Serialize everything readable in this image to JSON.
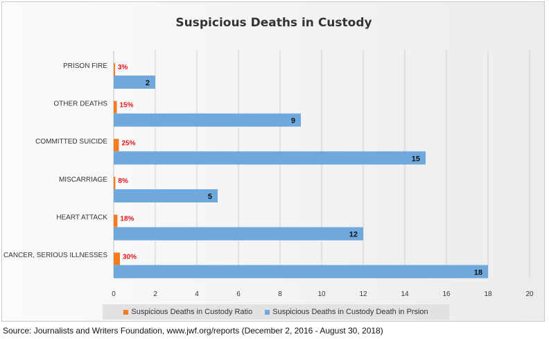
{
  "source_note": "Source: Journalists and Writers Foundation, www.jwf.org/reports (December 2, 2016 - August 30, 2018)",
  "colors": {
    "ratio": "#f47b20",
    "count": "#6fa8dc",
    "ratio_label": "#e8141a",
    "grid": "#d0d0d0"
  },
  "chart_data": {
    "type": "bar",
    "orientation": "horizontal",
    "title": "Suspicious Deaths in Custody",
    "categories": [
      "PRISON FIRE",
      "OTHER DEATHS",
      "COMMITTED SUICIDE",
      "MISCARRIAGE",
      "HEART ATTACK",
      "CANCER, SERIOUS ILLNESSES"
    ],
    "series": [
      {
        "name": "Suspicious Deaths in Custody Ratio",
        "values": [
          0.03,
          0.15,
          0.25,
          0.08,
          0.18,
          0.3
        ],
        "labels": [
          "3%",
          "15%",
          "25%",
          "8%",
          "18%",
          "30%"
        ]
      },
      {
        "name": "Suspicious Deaths in Custody Death in Prsion",
        "values": [
          2,
          9,
          15,
          5,
          12,
          18
        ],
        "labels": [
          "2",
          "9",
          "15",
          "5",
          "12",
          "18"
        ]
      }
    ],
    "xlim": [
      0,
      20
    ],
    "xticks": [
      "0",
      "2",
      "4",
      "6",
      "8",
      "10",
      "12",
      "14",
      "16",
      "18",
      "20"
    ],
    "grid": true,
    "legend_position": "bottom"
  }
}
